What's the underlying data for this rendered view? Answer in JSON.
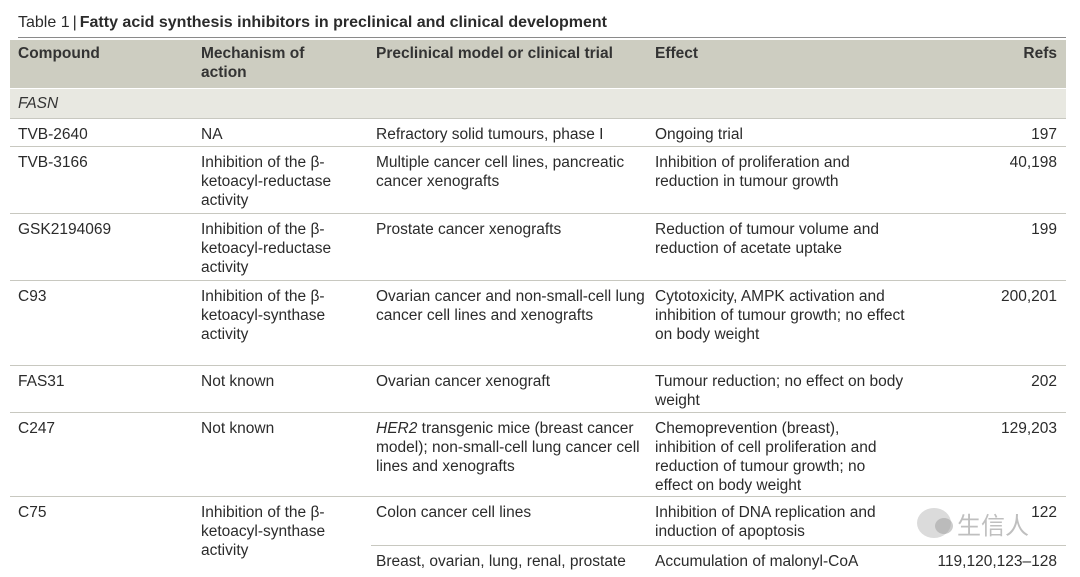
{
  "caption": {
    "number": "Table 1",
    "title": "Fatty acid synthesis inhibitors in preclinical and clinical development"
  },
  "columns": [
    "Compound",
    "Mechanism of action",
    "Preclinical model or clinical trial",
    "Effect",
    "Refs"
  ],
  "section": "FASN",
  "rows": [
    {
      "compound": "TVB-2640",
      "mechanism": "NA",
      "model": "Refractory solid tumours, phase I",
      "effect": "Ongoing trial",
      "refs": "197"
    },
    {
      "compound": "TVB-3166",
      "mechanism": "Inhibition of the β-ketoacyl-reductase activity",
      "model": "Multiple cancer cell lines, pancreatic cancer xenografts",
      "effect": "Inhibition of proliferation and reduction in tumour growth",
      "refs": "40,198"
    },
    {
      "compound": "GSK2194069",
      "mechanism": "Inhibition of the β-ketoacyl-reductase activity",
      "model": "Prostate cancer xenografts",
      "effect": "Reduction of tumour volume and reduction of acetate uptake",
      "refs": "199"
    },
    {
      "compound": "C93",
      "mechanism": "Inhibition of the β-ketoacyl-synthase activity",
      "model": "Ovarian cancer and non-small-cell lung cancer cell lines and xenografts",
      "effect": "Cytotoxicity, AMPK activation and inhibition of tumour growth; no effect on body weight",
      "refs": "200,201"
    },
    {
      "compound": "FAS31",
      "mechanism": "Not known",
      "model": "Ovarian cancer xenograft",
      "effect": "Tumour reduction; no effect on body weight",
      "refs": "202"
    },
    {
      "compound": "C247",
      "mechanism": "Not known",
      "model_italic": "HER2",
      "model": " transgenic mice (breast cancer model); non-small-cell lung cancer cell lines and xenografts",
      "effect": "Chemoprevention (breast), inhibition of cell proliferation and reduction of tumour growth; no effect on body weight",
      "refs": "129,203"
    },
    {
      "compound": "C75",
      "mechanism": "Inhibition of the β-ketoacyl-synthase activity",
      "model": "Colon cancer cell lines",
      "effect": "Inhibition of DNA replication and induction of apoptosis",
      "refs": "122",
      "sub": {
        "model": "Breast, ovarian, lung, renal, prostate",
        "effect": "Accumulation of malonyl-CoA",
        "refs": "119,120,123–128"
      }
    }
  ],
  "watermark": {
    "text": "生信人"
  }
}
